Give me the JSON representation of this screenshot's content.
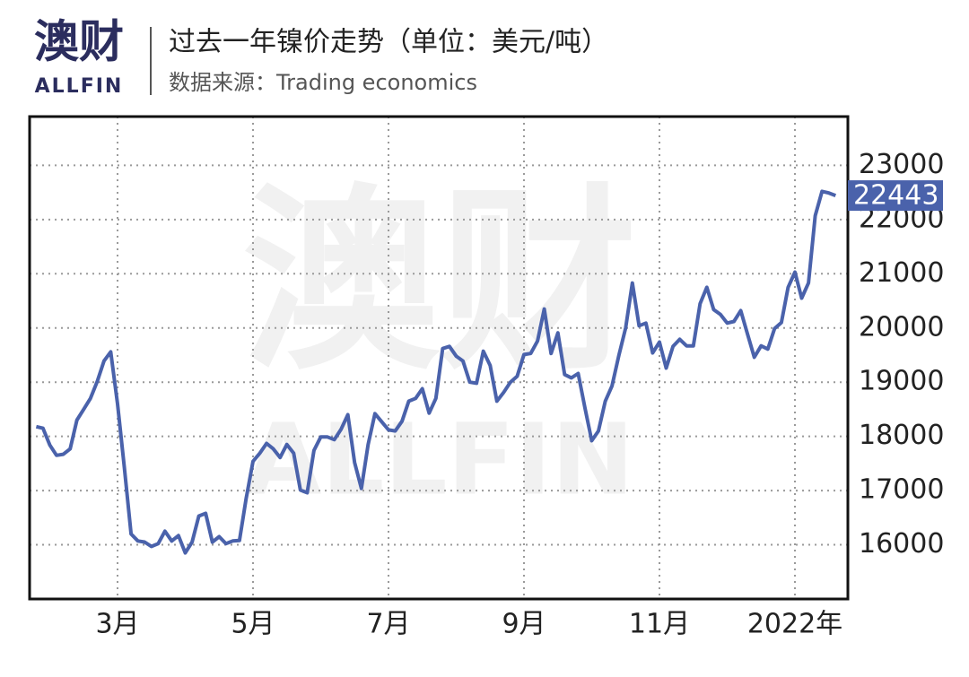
{
  "logo": {
    "name": "澳财",
    "sub": "ALLFIN"
  },
  "chart_data": {
    "type": "line",
    "title": "过去一年镍价走势（单位：美元/吨）",
    "subtitle": "数据来源：Trading economics",
    "watermark": "澳财",
    "watermark_sub": "ALLFIN",
    "color": "#4a62ab",
    "grid": true,
    "ylim": [
      15000,
      23900
    ],
    "yticks": [
      16000,
      17000,
      18000,
      19000,
      20000,
      21000,
      22000,
      23000
    ],
    "categories": [
      null,
      null,
      null,
      null,
      null,
      null,
      null,
      null,
      null,
      null,
      null,
      null,
      "3月",
      null,
      null,
      null,
      null,
      null,
      null,
      null,
      null,
      null,
      null,
      null,
      null,
      null,
      null,
      null,
      null,
      null,
      null,
      null,
      "5月",
      null,
      null,
      null,
      null,
      null,
      null,
      null,
      null,
      null,
      null,
      null,
      null,
      null,
      null,
      null,
      null,
      null,
      null,
      null,
      "7月",
      null,
      null,
      null,
      null,
      null,
      null,
      null,
      null,
      null,
      null,
      null,
      null,
      null,
      null,
      null,
      null,
      null,
      null,
      null,
      "9月",
      null,
      null,
      null,
      null,
      null,
      null,
      null,
      null,
      null,
      null,
      null,
      null,
      null,
      null,
      null,
      null,
      null,
      null,
      null,
      "11月",
      null,
      null,
      null,
      null,
      null,
      null,
      null,
      null,
      null,
      null,
      null,
      null,
      null,
      null,
      null,
      null,
      null,
      null,
      null,
      "2022年",
      null,
      null,
      null,
      null,
      null,
      null
    ],
    "values": [
      18180,
      18150,
      17840,
      17650,
      17670,
      17770,
      18300,
      18500,
      18700,
      19010,
      19390,
      19560,
      18600,
      17440,
      16200,
      16070,
      16050,
      15970,
      16020,
      16250,
      16070,
      16170,
      15850,
      16050,
      16530,
      16580,
      16050,
      16150,
      16020,
      16070,
      16080,
      16860,
      17540,
      17690,
      17870,
      17770,
      17610,
      17850,
      17690,
      17010,
      16960,
      17740,
      17990,
      17990,
      17940,
      18130,
      18400,
      17520,
      17040,
      17850,
      18420,
      18270,
      18120,
      18100,
      18280,
      18650,
      18700,
      18880,
      18430,
      18700,
      19620,
      19660,
      19480,
      19390,
      19000,
      18980,
      19570,
      19310,
      18650,
      18810,
      19000,
      19110,
      19510,
      19530,
      19760,
      20350,
      19530,
      19910,
      19140,
      19080,
      19160,
      18530,
      17920,
      18100,
      18650,
      18930,
      19490,
      20000,
      20830,
      20040,
      20090,
      19540,
      19740,
      19260,
      19660,
      19790,
      19670,
      19670,
      20450,
      20750,
      20340,
      20250,
      20090,
      20120,
      20320,
      19890,
      19460,
      19670,
      19610,
      19990,
      20100,
      20750,
      21030,
      20550,
      20830,
      22070,
      22520,
      22490,
      22443
    ]
  }
}
